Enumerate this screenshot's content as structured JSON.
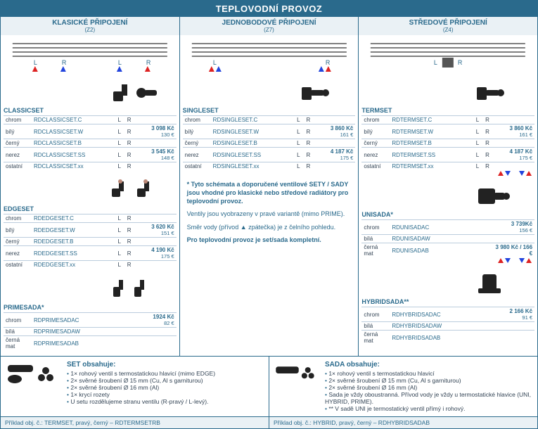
{
  "mainTitle": "TEPLOVODNÍ PROVOZ",
  "subHeaders": [
    {
      "title": "KLASICKÉ PŘIPOJENÍ",
      "z": "(Z2)"
    },
    {
      "title": "JEDNOBODOVÉ PŘIPOJENÍ",
      "z": "(Z7)"
    },
    {
      "title": "STŘEDOVÉ PŘIPOJENÍ",
      "z": "(Z4)"
    }
  ],
  "L": "L",
  "R": "R",
  "products": {
    "classic": {
      "name": "CLASSICSET",
      "rows": [
        {
          "lbl": "chrom",
          "code": "RDCLASSICSET.C"
        },
        {
          "lbl": "bílý",
          "code": "RDCLASSICSET.W",
          "price": "3 098 Kč",
          "eur": "130 €"
        },
        {
          "lbl": "černý",
          "code": "RDCLASSICSET.B"
        },
        {
          "lbl": "nerez",
          "code": "RDCLASSICSET.SS",
          "price": "3 545 Kč",
          "eur": "148 €"
        },
        {
          "lbl": "ostatní",
          "code": "RDCLASSICSET.xx"
        }
      ]
    },
    "edge": {
      "name": "EDGESET",
      "rows": [
        {
          "lbl": "chrom",
          "code": "RDEDGESET.C"
        },
        {
          "lbl": "bílý",
          "code": "RDEDGESET.W",
          "price": "3 620 Kč",
          "eur": "151 €"
        },
        {
          "lbl": "černý",
          "code": "RDEDGESET.B"
        },
        {
          "lbl": "nerez",
          "code": "RDEDGESET.SS",
          "price": "4 190 Kč",
          "eur": "175 €"
        },
        {
          "lbl": "ostatní",
          "code": "RDEDGESET.xx"
        }
      ]
    },
    "prime": {
      "name": "PRIMESADA*",
      "rows": [
        {
          "lbl": "chrom",
          "code": "RDPRIMESADAC",
          "price": "1924 Kč",
          "eur": "82 €"
        },
        {
          "lbl": "bílá",
          "code": "RDPRIMESADAW"
        },
        {
          "lbl": "černá mat",
          "code": "RDPRIMESADAB"
        }
      ]
    },
    "single": {
      "name": "SINGLESET",
      "rows": [
        {
          "lbl": "chrom",
          "code": "RDSINGLESET.C"
        },
        {
          "lbl": "bílý",
          "code": "RDSINGLESET.W",
          "price": "3 860 Kč",
          "eur": "161 €"
        },
        {
          "lbl": "černý",
          "code": "RDSINGLESET.B"
        },
        {
          "lbl": "nerez",
          "code": "RDSINGLESET.SS",
          "price": "4 187 Kč",
          "eur": "175 €"
        },
        {
          "lbl": "ostatní",
          "code": "RDSINGLESET.xx"
        }
      ]
    },
    "term": {
      "name": "TERMSET",
      "rows": [
        {
          "lbl": "chrom",
          "code": "RDTERMSET.C"
        },
        {
          "lbl": "bílý",
          "code": "RDTERMSET.W",
          "price": "3 860 Kč",
          "eur": "161 €"
        },
        {
          "lbl": "černý",
          "code": "RDTERMSET.B"
        },
        {
          "lbl": "nerez",
          "code": "RDTERMSET.SS",
          "price": "4 187 Kč",
          "eur": "175 €"
        },
        {
          "lbl": "ostatní",
          "code": "RDTERMSET.xx"
        }
      ]
    },
    "uni": {
      "name": "UNISADA*",
      "rows": [
        {
          "lbl": "chrom",
          "code": "RDUNISADAC",
          "price": "3 739Kč",
          "eur": "156 €"
        },
        {
          "lbl": "bílá",
          "code": "RDUNISADAW"
        },
        {
          "lbl": "černá mat",
          "code": "RDUNISADAB",
          "price2": "3 980 Kč / 166 €"
        }
      ]
    },
    "hybrid": {
      "name": "HYBRIDSADA**",
      "rows": [
        {
          "lbl": "chrom",
          "code": "RDHYBRIDSADAC",
          "price": "2 166 Kč",
          "eur": "91 €"
        },
        {
          "lbl": "bílá",
          "code": "RDHYBRIDSADAW"
        },
        {
          "lbl": "černá mat",
          "code": "RDHYBRIDSADAB"
        }
      ]
    }
  },
  "midNote": {
    "bold": "* Tyto schémata a doporučené ventilové SETY / SADY jsou vhodné pro klasické nebo středové radiátory pro teplovodní provoz.",
    "line1": "Ventily jsou vyobrazeny v pravé variantě (mimo PRIME).",
    "line2": "Směr vody (přívod ▲ zpátečka) je z čelního pohledu.",
    "boldEnd": "Pro teplovodní provoz je set/sada kompletní."
  },
  "setTitle": "SET obsahuje:",
  "setItems": [
    "1× rohový ventil s termostatickou hlavicí (mimo EDGE)",
    "2× svěrné šroubení Ø 15 mm (Cu, Al s garniturou)",
    "2× svěrné šroubení Ø 16 mm (Al)",
    "1× krycí rozety",
    "U setu rozdělujeme stranu ventilu (R-pravý / L-levý)."
  ],
  "sadaTitle": "SADA obsahuje:",
  "sadaItems": [
    "1× rohový ventil s termostatickou hlavicí",
    "2× svěrné šroubení Ø 15 mm (Cu, Al s garniturou)",
    "2× svěrné šroubení Ø 16 mm (Al)",
    "Sada je vždy oboustranná. Přívod vody je vždy u termostatické hlavice (UNI, HYBRID, PRIME).",
    "** V sadě UNI je termostatický ventil přímý i rohový."
  ],
  "footerL": "Příklad obj. č.: TERMSET, pravý, černý – RDTERMSETRB",
  "footerR": "Příklad obj. č.: HYBRID, pravý, černý – RDHYBRIDSADAB",
  "colors": {
    "brand": "#2a6a8c",
    "bgLight": "#eaf1f5",
    "red": "#d22",
    "blue": "#24d",
    "black": "#222"
  }
}
